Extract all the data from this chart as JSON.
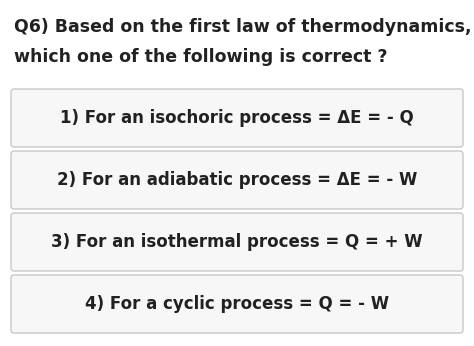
{
  "question_line1": "Q6) Based on the first law of thermodynamics,",
  "question_line2": "which one of the following is correct ?",
  "options": [
    "1) For an isochoric process = ΔE = - Q",
    "2) For an adiabatic process = ΔE = - W",
    "3) For an isothermal process = Q = + W",
    "4) For a cyclic process = Q = - W"
  ],
  "bg_color": "#ffffff",
  "text_color": "#212121",
  "box_border_color": "#c8c8c8",
  "box_fill_color": "#f7f7f7",
  "question_fontsize": 12.5,
  "option_fontsize": 12.0,
  "fig_width": 4.74,
  "fig_height": 3.46,
  "dpi": 100
}
